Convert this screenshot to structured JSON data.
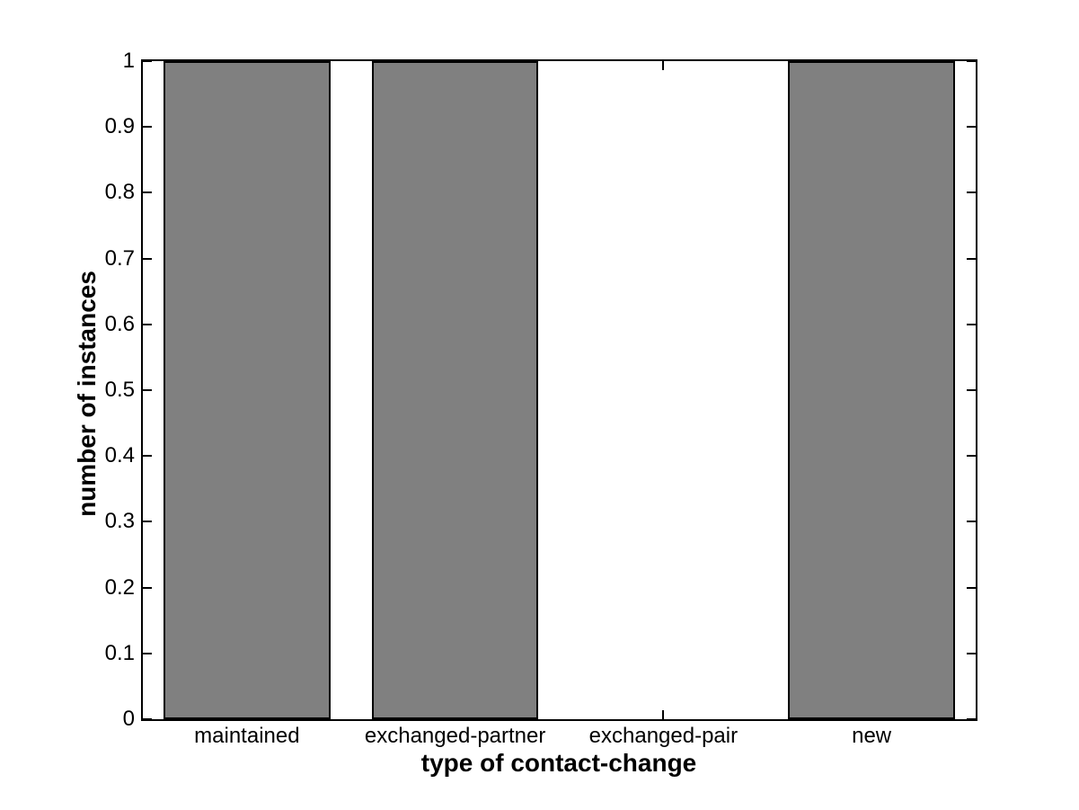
{
  "chart_data": {
    "type": "bar",
    "categories": [
      "maintained",
      "exchanged-partner",
      "exchanged-pair",
      "new"
    ],
    "values": [
      1,
      1,
      0,
      1
    ],
    "title": "",
    "xlabel": "type of contact-change",
    "ylabel": "number of instances",
    "ylim": [
      0,
      1
    ],
    "yticks": [
      0,
      0.1,
      0.2,
      0.3,
      0.4,
      0.5,
      0.6,
      0.7,
      0.8,
      0.9,
      1
    ],
    "ytick_labels": [
      "0",
      "0.1",
      "0.2",
      "0.3",
      "0.4",
      "0.5",
      "0.6",
      "0.7",
      "0.8",
      "0.9",
      "1"
    ],
    "xtick_labels": [
      "maintained",
      "exchanged-partner",
      "exchanged-pair",
      "new"
    ],
    "bar_width_fraction": 0.8,
    "bar_color": "#808080",
    "bar_edge_color": "#000000",
    "axis_color": "#000000",
    "background_color": "#ffffff",
    "grid": false,
    "legend": null,
    "ticks_inward_both_sides": true
  }
}
